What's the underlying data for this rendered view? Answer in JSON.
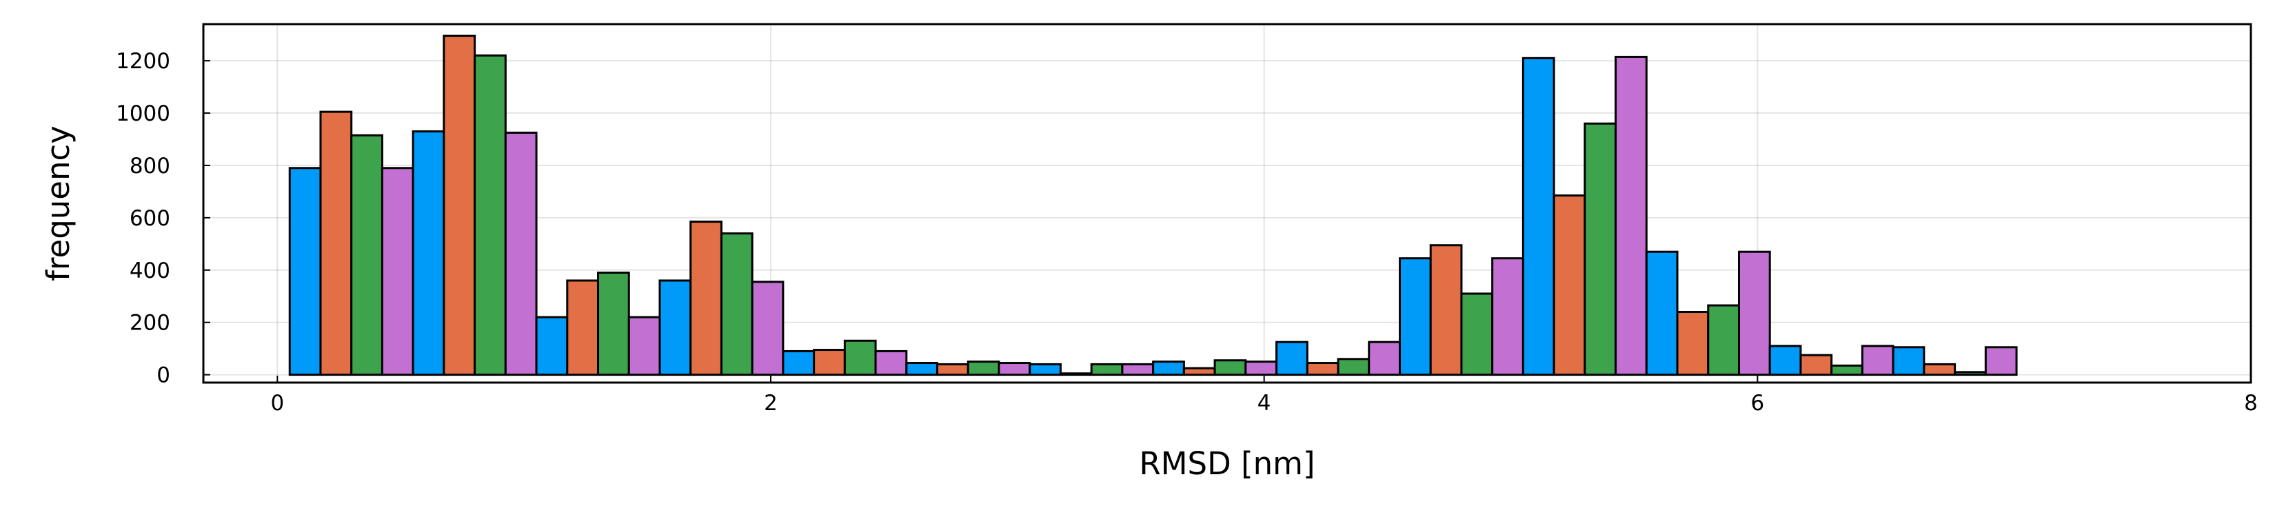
{
  "chart_data": {
    "type": "bar",
    "title": "",
    "xlabel": "RMSD [nm]",
    "ylabel": "frequency",
    "xlim": [
      -0.3,
      8
    ],
    "ylim": [
      -30,
      1340
    ],
    "x_ticks": [
      0,
      2,
      4,
      6,
      8
    ],
    "y_ticks": [
      0,
      200,
      400,
      600,
      800,
      1000,
      1200
    ],
    "grid": true,
    "legend": "none",
    "bin_edges": [
      0.05,
      0.55,
      1.05,
      1.55,
      2.05,
      2.55,
      3.05,
      3.55,
      4.05,
      4.55,
      5.05,
      5.55,
      6.05,
      6.55
    ],
    "bin_width": 0.5,
    "series": [
      {
        "color": "#009af9",
        "values": [
          790,
          930,
          220,
          360,
          90,
          45,
          40,
          50,
          125,
          445,
          1210,
          470,
          110,
          105
        ]
      },
      {
        "color": "#e26f46",
        "values": [
          1005,
          1295,
          360,
          585,
          95,
          40,
          5,
          25,
          45,
          495,
          685,
          240,
          75,
          40
        ]
      },
      {
        "color": "#3da44d",
        "values": [
          915,
          1220,
          390,
          540,
          130,
          50,
          40,
          55,
          60,
          310,
          960,
          265,
          35,
          10
        ]
      },
      {
        "color": "#c271d2",
        "values": [
          790,
          925,
          220,
          355,
          90,
          45,
          40,
          50,
          125,
          445,
          1215,
          470,
          110,
          105
        ]
      }
    ]
  }
}
